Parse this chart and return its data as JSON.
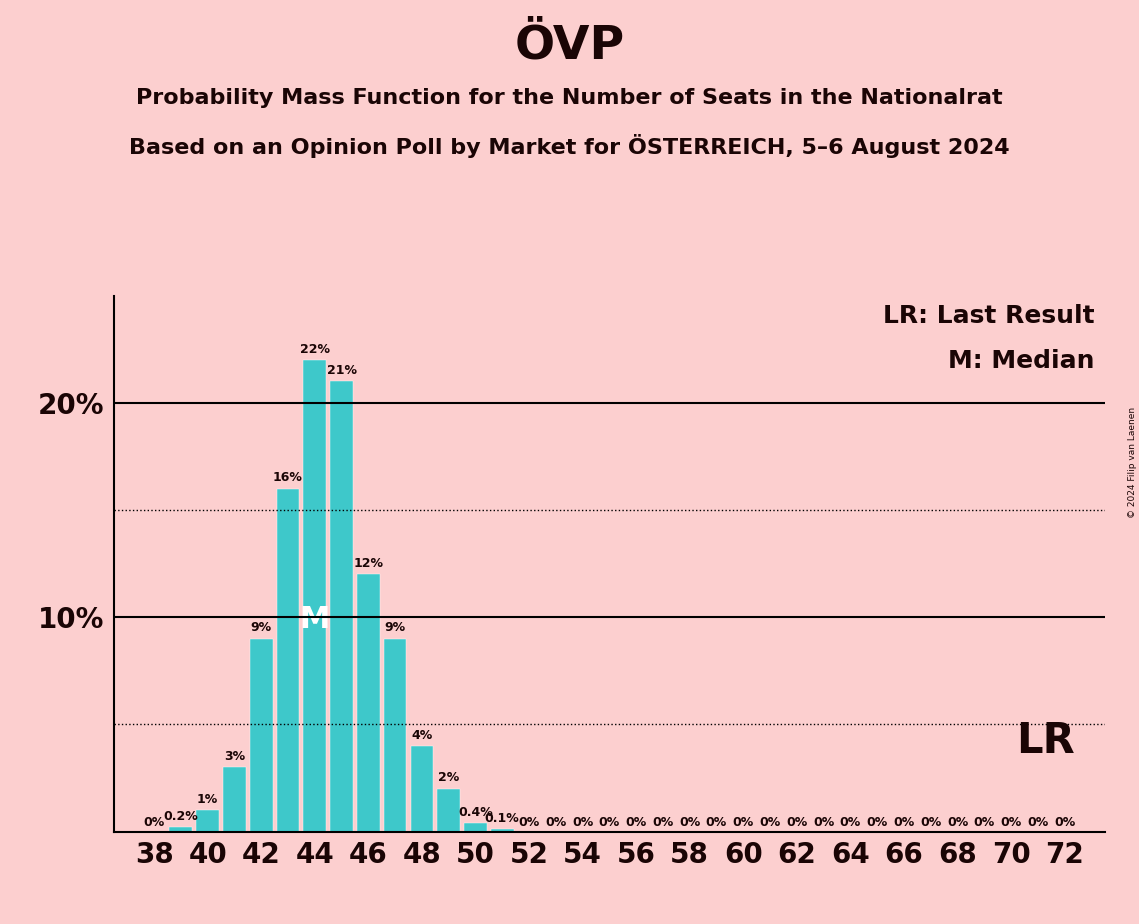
{
  "title": "ÖVP",
  "subtitle1": "Probability Mass Function for the Number of Seats in the Nationalrat",
  "subtitle2": "Based on an Opinion Poll by Market for ÖSTERREICH, 5–6 August 2024",
  "copyright": "© 2024 Filip van Laenen",
  "bar_color": "#3EC8CA",
  "background_color": "#FCCFCF",
  "bar_data": {
    "38": 0.0,
    "39": 0.2,
    "40": 1.0,
    "41": 3.0,
    "42": 9.0,
    "43": 16.0,
    "44": 22.0,
    "45": 21.0,
    "46": 12.0,
    "47": 9.0,
    "48": 4.0,
    "49": 2.0,
    "50": 0.4,
    "51": 0.1,
    "52": 0.0,
    "53": 0.0,
    "54": 0.0,
    "55": 0.0,
    "56": 0.0,
    "57": 0.0,
    "58": 0.0,
    "59": 0.0,
    "60": 0.0,
    "61": 0.0,
    "62": 0.0,
    "63": 0.0,
    "64": 0.0,
    "65": 0.0,
    "66": 0.0,
    "67": 0.0,
    "68": 0.0,
    "69": 0.0,
    "70": 0.0,
    "71": 0.0,
    "72": 0.0
  },
  "median_seat": 44,
  "lr_seat": 72,
  "x_ticks": [
    38,
    40,
    42,
    44,
    46,
    48,
    50,
    52,
    54,
    56,
    58,
    60,
    62,
    64,
    66,
    68,
    70,
    72
  ],
  "xlim": [
    36.5,
    73.5
  ],
  "ylim": [
    0,
    25
  ],
  "dotted_lines": [
    5,
    15
  ],
  "solid_lines": [
    10,
    20
  ],
  "text_color": "#1a0505",
  "bar_label_fontsize": 9,
  "title_fontsize": 34,
  "subtitle_fontsize": 16,
  "axis_tick_fontsize": 20,
  "legend_fontsize": 18,
  "lr_label": "LR: Last Result",
  "m_label": "M: Median",
  "lr_short": "LR"
}
